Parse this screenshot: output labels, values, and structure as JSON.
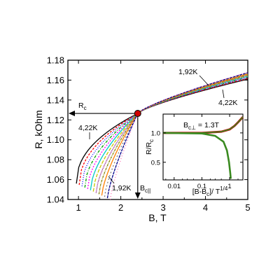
{
  "chart_data": [
    {
      "type": "line",
      "title": "",
      "xlabel": "B, T",
      "ylabel": "R, kOhm",
      "xlim": [
        0.75,
        5.0
      ],
      "ylim": [
        1.04,
        1.18
      ],
      "x_ticks": [
        "1",
        "2",
        "3",
        "4",
        "5"
      ],
      "y_ticks": [
        "1.04",
        "1.06",
        "1.08",
        "1.10",
        "1.12",
        "1.14",
        "1.16",
        "1.18"
      ],
      "grid": false,
      "crossing_point": {
        "x": 2.4,
        "y": 1.1265
      },
      "series_summary": {
        "temperature_range": [
          "4,22K",
          "1,92K"
        ],
        "count": 13,
        "colors": [
          "#000000",
          "#ff0000",
          "#0000ff",
          "#00a000",
          "#ff00ff",
          "#00c8c8",
          "#c8c800",
          "#800080",
          "#808000",
          "#ff8000",
          "#808080",
          "#00008b",
          "#ff69b4"
        ],
        "high_field_value_at_5T": {
          "4,22K": 1.161,
          "1,92K": 1.168
        },
        "low_field_start": {
          "4,22K": {
            "x": 0.95,
            "y": 1.056
          },
          "1,92K": {
            "x": 1.75,
            "y": 1.04
          }
        }
      },
      "annotations": {
        "rc_label": "R",
        "rc_sub": "c",
        "bc_label": "B",
        "bc_sub": "c||",
        "temp_high_upper": "1,92K",
        "temp_low_upper": "4,22K",
        "temp_low_lower": "4,22K",
        "temp_high_lower": "1,92K"
      }
    },
    {
      "type": "line",
      "title": "",
      "xlabel_parts": {
        "main": "[B-B",
        "sub": "c",
        "close": "]/ T",
        "sup": "1/4"
      },
      "ylabel_parts": {
        "main": "R/R",
        "sub": "c"
      },
      "xscale": "log",
      "xlim": [
        0.004,
        3.0
      ],
      "ylim": [
        0.2,
        1.32
      ],
      "x_ticks": [
        "0.01",
        "0.1",
        "1"
      ],
      "y_ticks": [
        "0.5",
        "1.0"
      ],
      "annotation_parts": {
        "main": "B",
        "sub": "c⊥",
        "rest": " = 1.3T"
      },
      "upper_branch": {
        "x": [
          0.004,
          0.1,
          0.5,
          1.0,
          1.5,
          2.0,
          2.5,
          3.0
        ],
        "y": [
          1.0,
          1.0,
          1.02,
          1.06,
          1.12,
          1.18,
          1.23,
          1.27
        ]
      },
      "lower_branch": {
        "x": [
          0.004,
          0.1,
          0.3,
          0.6,
          0.8,
          0.95,
          1.05,
          1.1
        ],
        "y": [
          1.0,
          0.99,
          0.95,
          0.85,
          0.7,
          0.5,
          0.32,
          0.22
        ]
      },
      "upper_color": "#c00000",
      "overlay_color": "#3a8a20"
    }
  ]
}
